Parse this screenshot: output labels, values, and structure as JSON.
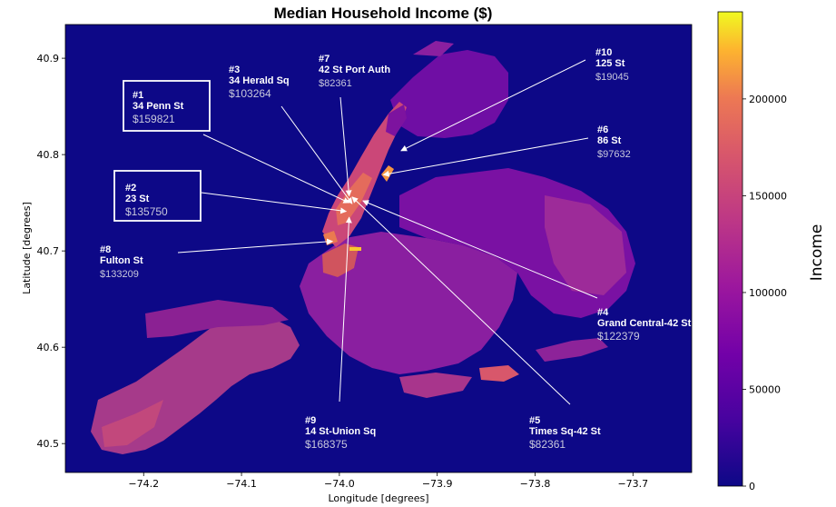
{
  "chart_data": {
    "type": "heatmap",
    "title": "Median Household Income ($)",
    "xlabel": "Longitude [degrees]",
    "ylabel": "Latitude [degrees]",
    "xlim": [
      -74.28,
      -73.64
    ],
    "ylim": [
      40.47,
      40.935
    ],
    "x_ticks": [
      -74.2,
      -74.1,
      -74.0,
      -73.9,
      -73.8,
      -73.7
    ],
    "x_tick_labels": [
      "−74.2",
      "−74.1",
      "−74.0",
      "−73.9",
      "−73.8",
      "−73.7"
    ],
    "y_ticks": [
      40.5,
      40.6,
      40.7,
      40.8,
      40.9
    ],
    "y_tick_labels": [
      "40.5",
      "40.6",
      "40.7",
      "40.8",
      "40.9"
    ],
    "colorbar": {
      "label": "Income",
      "range": [
        0,
        245000
      ],
      "ticks": [
        0,
        50000,
        100000,
        150000,
        200000
      ],
      "tick_labels": [
        "0",
        "50000",
        "100000",
        "150000",
        "200000"
      ],
      "colormap": "plasma"
    },
    "background_color": "#0d0887",
    "grid": false,
    "annotations": [
      {
        "rank": "#1",
        "station": "34 Penn St",
        "income": "$159821",
        "boxed": true,
        "lon": -73.99,
        "lat": 40.75
      },
      {
        "rank": "#2",
        "station": "23 St",
        "income": "$135750",
        "boxed": true,
        "lon": -73.993,
        "lat": 40.741
      },
      {
        "rank": "#3",
        "station": "34 Herald Sq",
        "income": "$103264",
        "boxed": false,
        "lon": -73.987,
        "lat": 40.749
      },
      {
        "rank": "#4",
        "station": "Grand Central-42 St",
        "income": "$122379",
        "boxed": false,
        "lon": -73.976,
        "lat": 40.752
      },
      {
        "rank": "#5",
        "station": "Times Sq-42 St",
        "income": "$82361",
        "boxed": false,
        "lon": -73.987,
        "lat": 40.756
      },
      {
        "rank": "#6",
        "station": "86 St",
        "income": "$97632",
        "boxed": false,
        "lon": -73.955,
        "lat": 40.779
      },
      {
        "rank": "#7",
        "station": "42 St Port Auth",
        "income": "$82361",
        "boxed": false,
        "lon": -73.99,
        "lat": 40.757
      },
      {
        "rank": "#8",
        "station": "Fulton St",
        "income": "$133209",
        "boxed": false,
        "lon": -74.007,
        "lat": 40.71
      },
      {
        "rank": "#9",
        "station": "14 St-Union Sq",
        "income": "$168375",
        "boxed": false,
        "lon": -73.99,
        "lat": 40.735
      },
      {
        "rank": "#10",
        "station": "125 St",
        "income": "$19045",
        "boxed": false,
        "lon": -73.937,
        "lat": 40.804
      }
    ]
  }
}
